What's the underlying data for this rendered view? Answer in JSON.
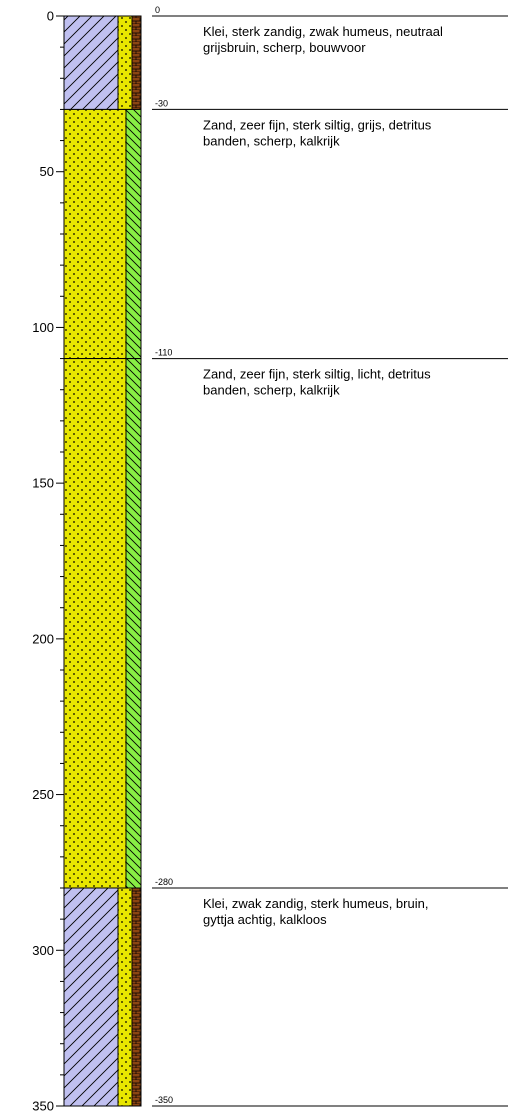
{
  "axis": {
    "min": 0,
    "max": 350,
    "major_ticks": [
      0,
      50,
      100,
      150,
      200,
      250,
      300,
      350
    ],
    "minor_step": 10
  },
  "layers": [
    {
      "top": 0,
      "bottom": 30,
      "top_label": "0",
      "bottom_label": "-30",
      "main_material": "clay",
      "secondary_material": "sand",
      "tertiary_material": "humus",
      "description": [
        "Klei, sterk zandig, zwak humeus, neutraal",
        "grijsbruin, scherp, bouwvoor"
      ]
    },
    {
      "top": 30,
      "bottom": 110,
      "top_label": "-30",
      "bottom_label": "-110",
      "main_material": "sand",
      "secondary_material": "silt",
      "description": [
        "Zand, zeer fijn, sterk siltig, grijs, detritus",
        "banden, scherp, kalkrijk"
      ]
    },
    {
      "top": 110,
      "bottom": 280,
      "top_label": "-110",
      "bottom_label": "-280",
      "main_material": "sand",
      "secondary_material": "silt",
      "description": [
        "Zand, zeer fijn, sterk siltig, licht, detritus",
        "banden, scherp, kalkrijk"
      ]
    },
    {
      "top": 280,
      "bottom": 350,
      "top_label": "-280",
      "bottom_label": "-350",
      "main_material": "clay",
      "secondary_material": "sand",
      "tertiary_material": "humus",
      "description": [
        "Klei, zwak zandig, sterk humeus, bruin,",
        "gyttja achtig, kalkloos"
      ]
    }
  ],
  "boundary_labels": [
    "0",
    "-30",
    "-110",
    "-280",
    "-350"
  ],
  "colors": {
    "clay": "#c0c0f0",
    "sand": "#e8e600",
    "silt": "#88ee44",
    "humus": "#8b4513",
    "stroke": "#000000"
  }
}
